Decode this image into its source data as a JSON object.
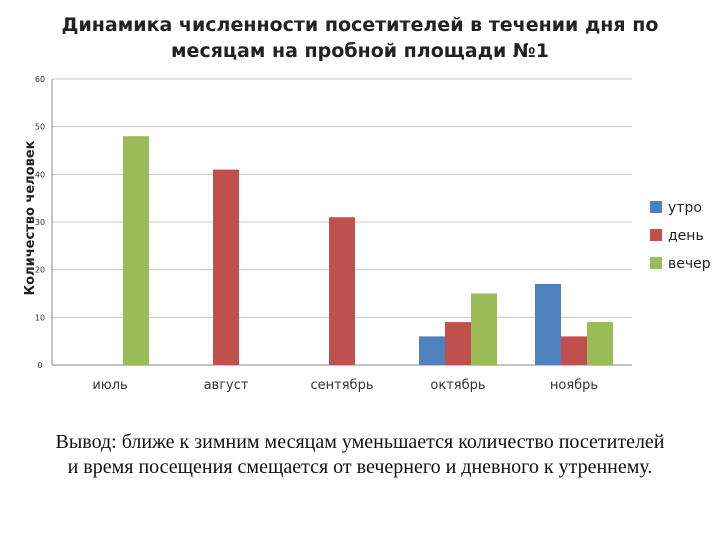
{
  "slide": {
    "conclusion_line1": "Вывод: ближе к зимним месяцам уменьшается количество посетителей",
    "conclusion_line2": "и время посещения смещается от вечернего и дневного к утреннему."
  },
  "chart_data": {
    "type": "bar",
    "title_line1": "Динамика численности  посетителей в течении дня по",
    "title_line2": "месяцам на пробной площади №1",
    "ylabel": "Количество человек",
    "xlabel": "",
    "categories": [
      "июль",
      "август",
      "сентябрь",
      "октябрь",
      "ноябрь"
    ],
    "series": [
      {
        "name": "утро",
        "color": "#4F81BD",
        "values": [
          0,
          0,
          0,
          6,
          17
        ]
      },
      {
        "name": "день",
        "color": "#C0504D",
        "values": [
          0,
          41,
          31,
          9,
          6
        ]
      },
      {
        "name": "вечер",
        "color": "#9BBB59",
        "values": [
          48,
          0,
          0,
          15,
          9
        ]
      }
    ],
    "ylim": [
      0,
      60
    ],
    "yticks": [
      0,
      10,
      20,
      30,
      40,
      50,
      60
    ],
    "grid": true,
    "legend": "right"
  }
}
